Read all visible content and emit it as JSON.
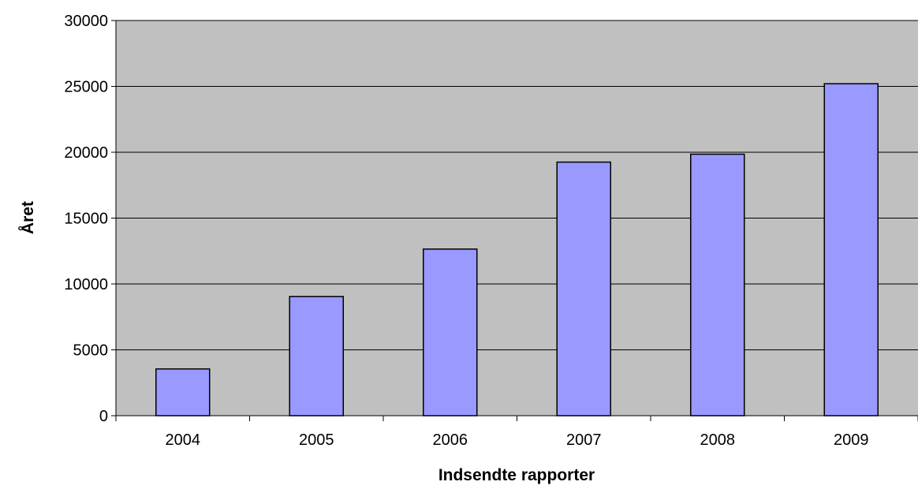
{
  "chart_data": {
    "type": "bar",
    "categories": [
      "2004",
      "2005",
      "2006",
      "2007",
      "2008",
      "2009"
    ],
    "values": [
      3550,
      9050,
      12650,
      19250,
      19850,
      25200
    ],
    "title": "",
    "xlabel": "Indsendte rapporter",
    "ylabel": "Året",
    "ylim": [
      0,
      30000
    ],
    "yticks": [
      0,
      5000,
      10000,
      15000,
      20000,
      25000,
      30000
    ],
    "ytick_labels": [
      "0",
      "5000",
      "10000",
      "15000",
      "20000",
      "25000",
      "30000"
    ],
    "grid": true,
    "legend": "none",
    "colors": {
      "bar_fill": "#9999ff",
      "bar_stroke": "#000000",
      "plot_background": "#c0c0c0",
      "gridline": "#000000"
    }
  }
}
